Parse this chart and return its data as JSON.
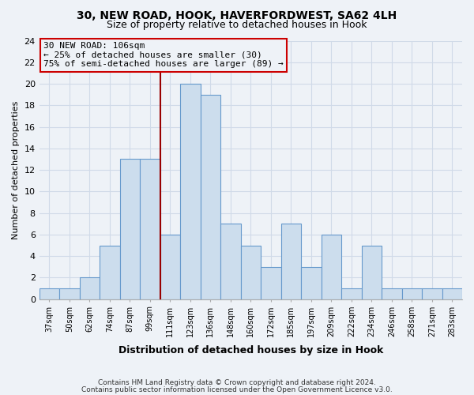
{
  "title": "30, NEW ROAD, HOOK, HAVERFORDWEST, SA62 4LH",
  "subtitle": "Size of property relative to detached houses in Hook",
  "xlabel": "Distribution of detached houses by size in Hook",
  "ylabel": "Number of detached properties",
  "bar_labels": [
    "37sqm",
    "50sqm",
    "62sqm",
    "74sqm",
    "87sqm",
    "99sqm",
    "111sqm",
    "123sqm",
    "136sqm",
    "148sqm",
    "160sqm",
    "172sqm",
    "185sqm",
    "197sqm",
    "209sqm",
    "222sqm",
    "234sqm",
    "246sqm",
    "258sqm",
    "271sqm",
    "283sqm"
  ],
  "bar_values": [
    1,
    1,
    2,
    5,
    13,
    13,
    6,
    20,
    19,
    7,
    5,
    3,
    7,
    3,
    6,
    1,
    5,
    1,
    1,
    1,
    1
  ],
  "bar_color": "#ccdded",
  "bar_edgecolor": "#6699cc",
  "vline_color": "#990000",
  "vline_index": 5,
  "annotation_title": "30 NEW ROAD: 106sqm",
  "annotation_line1": "← 25% of detached houses are smaller (30)",
  "annotation_line2": "75% of semi-detached houses are larger (89) →",
  "annotation_box_edgecolor": "#cc0000",
  "ylim": [
    0,
    24
  ],
  "yticks": [
    0,
    2,
    4,
    6,
    8,
    10,
    12,
    14,
    16,
    18,
    20,
    22,
    24
  ],
  "footnote1": "Contains HM Land Registry data © Crown copyright and database right 2024.",
  "footnote2": "Contains public sector information licensed under the Open Government Licence v3.0.",
  "bg_color": "#eef2f7",
  "grid_color": "#d0dae8",
  "plot_bg_color": "#eef2f7"
}
